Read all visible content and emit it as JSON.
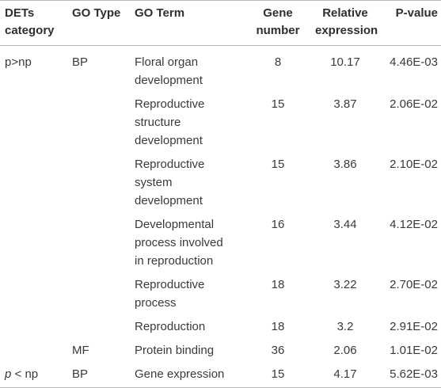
{
  "headers": {
    "category": [
      "DETs",
      "category"
    ],
    "go_type": "GO Type",
    "go_term": "GO Term",
    "gene_number": [
      "Gene",
      "number"
    ],
    "relative_expression": [
      "Relative",
      "expression"
    ],
    "p_value": "P-value"
  },
  "rows": [
    {
      "category": "p>np",
      "go_type": "BP",
      "go_term": [
        "Floral organ",
        "development"
      ],
      "gene_number": "8",
      "relative_expression": "10.17",
      "p_value": "4.46E-03"
    },
    {
      "category": "",
      "go_type": "",
      "go_term": [
        "Reproductive",
        "structure",
        "development"
      ],
      "gene_number": "15",
      "relative_expression": "3.87",
      "p_value": "2.06E-02"
    },
    {
      "category": "",
      "go_type": "",
      "go_term": [
        "Reproductive",
        "system",
        "development"
      ],
      "gene_number": "15",
      "relative_expression": "3.86",
      "p_value": "2.10E-02"
    },
    {
      "category": "",
      "go_type": "",
      "go_term": [
        "Developmental",
        "process involved",
        "in reproduction"
      ],
      "gene_number": "16",
      "relative_expression": "3.44",
      "p_value": "4.12E-02"
    },
    {
      "category": "",
      "go_type": "",
      "go_term": [
        "Reproductive",
        "process"
      ],
      "gene_number": "18",
      "relative_expression": "3.22",
      "p_value": "2.70E-02"
    },
    {
      "category": "",
      "go_type": "",
      "go_term": [
        "Reproduction"
      ],
      "gene_number": "18",
      "relative_expression": "3.2",
      "p_value": "2.91E-02"
    },
    {
      "category": "",
      "go_type": "MF",
      "go_term": [
        "Protein binding"
      ],
      "gene_number": "36",
      "relative_expression": "2.06",
      "p_value": "1.01E-02"
    },
    {
      "category_italic": "p",
      "category": " < np",
      "go_type": "BP",
      "go_term": [
        "Gene expression"
      ],
      "gene_number": "15",
      "relative_expression": "4.17",
      "p_value": "5.62E-03"
    }
  ]
}
